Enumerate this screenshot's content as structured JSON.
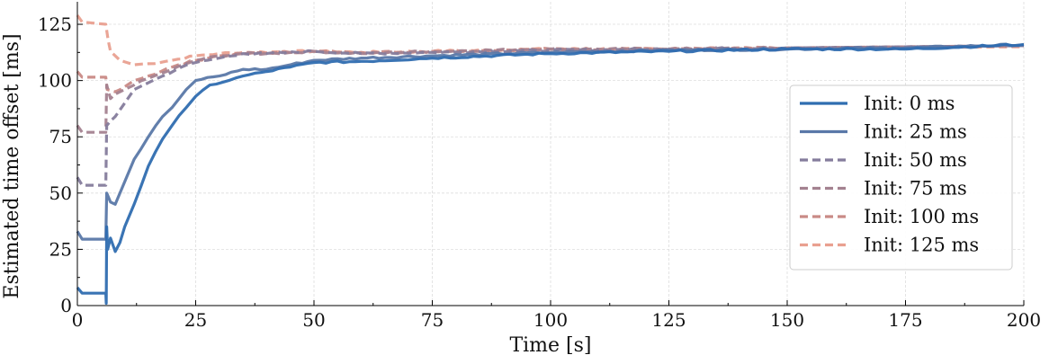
{
  "chart_data": {
    "type": "line",
    "title": "",
    "xlabel": "Time [s]",
    "ylabel": "Estimated time offset [ms]",
    "xlim": [
      0,
      200
    ],
    "ylim": [
      0,
      135
    ],
    "xticks": [
      0,
      25,
      50,
      75,
      100,
      125,
      150,
      175,
      200
    ],
    "yticks": [
      0,
      25,
      50,
      75,
      100,
      125
    ],
    "grid": true,
    "legend_position": "center-right",
    "series": [
      {
        "name": "Init: 0 ms",
        "color": "#2f6db0",
        "dashed": false,
        "x": [
          0,
          1,
          6,
          6.1,
          6.2,
          6.4,
          7,
          8,
          9,
          10,
          12,
          15,
          18,
          20,
          23,
          25,
          28,
          32,
          35,
          40,
          45,
          50,
          60,
          75,
          100,
          125,
          150,
          175,
          200
        ],
        "y": [
          8,
          5.5,
          5.5,
          1,
          35,
          25,
          30,
          24,
          28,
          35,
          45,
          62,
          74,
          80,
          88,
          93,
          98,
          100,
          102,
          104,
          106,
          108,
          108.5,
          110,
          112,
          113,
          114,
          114,
          116
        ]
      },
      {
        "name": "Init: 25 ms",
        "color": "#5a78a8",
        "dashed": false,
        "x": [
          0,
          1,
          6,
          6.2,
          7,
          8,
          10,
          12,
          15,
          18,
          20,
          23,
          25,
          30,
          35,
          40,
          45,
          50,
          60,
          75,
          100,
          125,
          150,
          175,
          200
        ],
        "y": [
          33,
          29.5,
          29.5,
          50,
          46,
          45,
          55,
          65,
          75,
          84,
          88,
          96,
          100,
          102,
          105,
          105,
          107,
          109,
          110,
          111,
          112.5,
          113.5,
          114,
          114.5,
          116
        ]
      },
      {
        "name": "Init: 50 ms",
        "color": "#857c9c",
        "dashed": true,
        "x": [
          0,
          1,
          6,
          6.2,
          7,
          8,
          10,
          12,
          15,
          18,
          22,
          25,
          30,
          35,
          40,
          50,
          60,
          75,
          100,
          125,
          150
        ],
        "y": [
          57,
          53.5,
          53.5,
          80,
          82,
          84,
          90,
          96,
          99,
          102,
          106,
          108,
          110,
          112,
          112,
          113,
          112,
          112.5,
          113.5,
          114,
          114.5
        ]
      },
      {
        "name": "Init: 75 ms",
        "color": "#a48290",
        "dashed": true,
        "x": [
          0,
          1,
          6,
          6.2,
          7,
          8,
          10,
          12,
          15,
          20,
          25,
          30,
          35,
          40,
          50,
          60,
          75,
          100,
          125,
          150
        ],
        "y": [
          80,
          77,
          77,
          98,
          92,
          94,
          96,
          98,
          101,
          105,
          109,
          111,
          112,
          112,
          113,
          112,
          113,
          114,
          114,
          114.5
        ]
      },
      {
        "name": "Init: 100 ms",
        "color": "#c98a86",
        "dashed": true,
        "x": [
          0,
          1,
          6,
          6.3,
          8,
          12,
          15,
          20,
          25,
          30,
          35,
          50,
          60,
          75,
          100,
          125,
          150
        ],
        "y": [
          104,
          101.5,
          101.5,
          96,
          95,
          100,
          102,
          106,
          109,
          111,
          112,
          113,
          112.5,
          113,
          114,
          114,
          114.5
        ]
      },
      {
        "name": "Init: 125 ms",
        "color": "#e9a090",
        "dashed": true,
        "x": [
          0,
          1,
          6,
          6.5,
          7,
          9,
          12,
          15,
          20,
          25,
          30,
          35,
          50,
          60,
          75,
          100,
          125
        ],
        "y": [
          129,
          126,
          125,
          118,
          113,
          109,
          107,
          107.5,
          109,
          111,
          112,
          112.5,
          113,
          112.5,
          113,
          114,
          114
        ]
      }
    ]
  }
}
